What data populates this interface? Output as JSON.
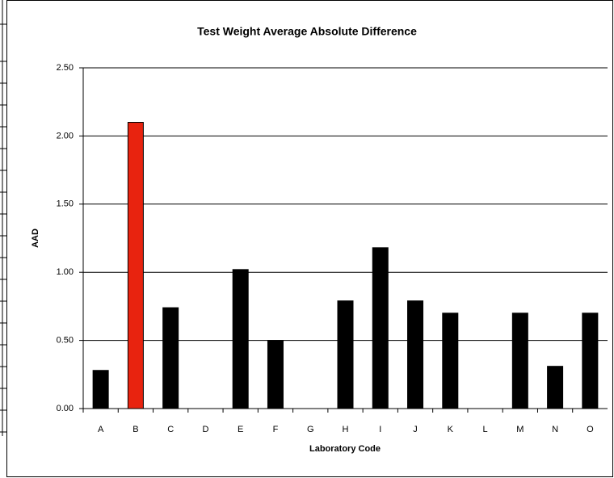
{
  "chart_data": {
    "type": "bar",
    "title": "Test Weight Average Absolute Difference",
    "x_label": "Laboratory Code",
    "y_label": "AAD",
    "categories": [
      "A",
      "B",
      "C",
      "D",
      "E",
      "F",
      "G",
      "H",
      "I",
      "J",
      "K",
      "L",
      "M",
      "N",
      "O"
    ],
    "values": [
      0.28,
      2.1,
      0.74,
      0,
      1.02,
      0.5,
      0,
      0.79,
      1.18,
      0.79,
      0.7,
      0,
      0.7,
      0.31,
      0.7
    ],
    "colors": [
      "#000000",
      "#e8230f",
      "#000000",
      "#000000",
      "#000000",
      "#000000",
      "#000000",
      "#000000",
      "#000000",
      "#000000",
      "#000000",
      "#000000",
      "#000000",
      "#000000",
      "#000000"
    ],
    "ylim": [
      0,
      2.5
    ],
    "yticks": [
      {
        "value": 0,
        "label": "0.00"
      },
      {
        "value": 0.5,
        "label": "0.50"
      },
      {
        "value": 1,
        "label": "1.00"
      },
      {
        "value": 1.5,
        "label": "1.50"
      },
      {
        "value": 2,
        "label": "2.00"
      },
      {
        "value": 2.5,
        "label": "2.50"
      }
    ],
    "grid": true
  }
}
